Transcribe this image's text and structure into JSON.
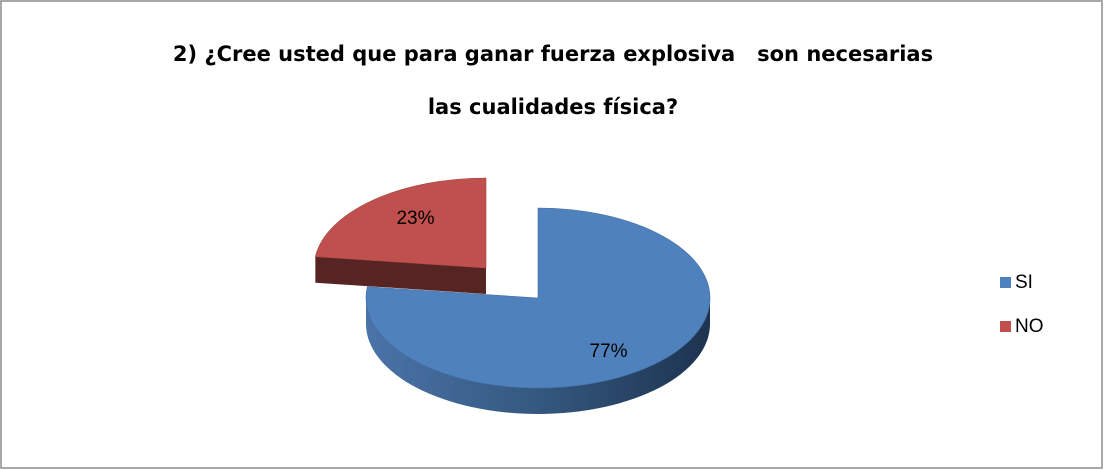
{
  "chart_data": {
    "type": "pie",
    "title": [
      "2) ¿Cree usted que para ganar fuerza explosiva   son necesarias",
      "las cualidades física?"
    ],
    "categories": [
      "SI",
      "NO"
    ],
    "values": [
      77,
      23
    ],
    "value_labels": [
      "77%",
      "23%"
    ],
    "colors": [
      "#4f81bd",
      "#c0504d"
    ],
    "legend": "right"
  }
}
